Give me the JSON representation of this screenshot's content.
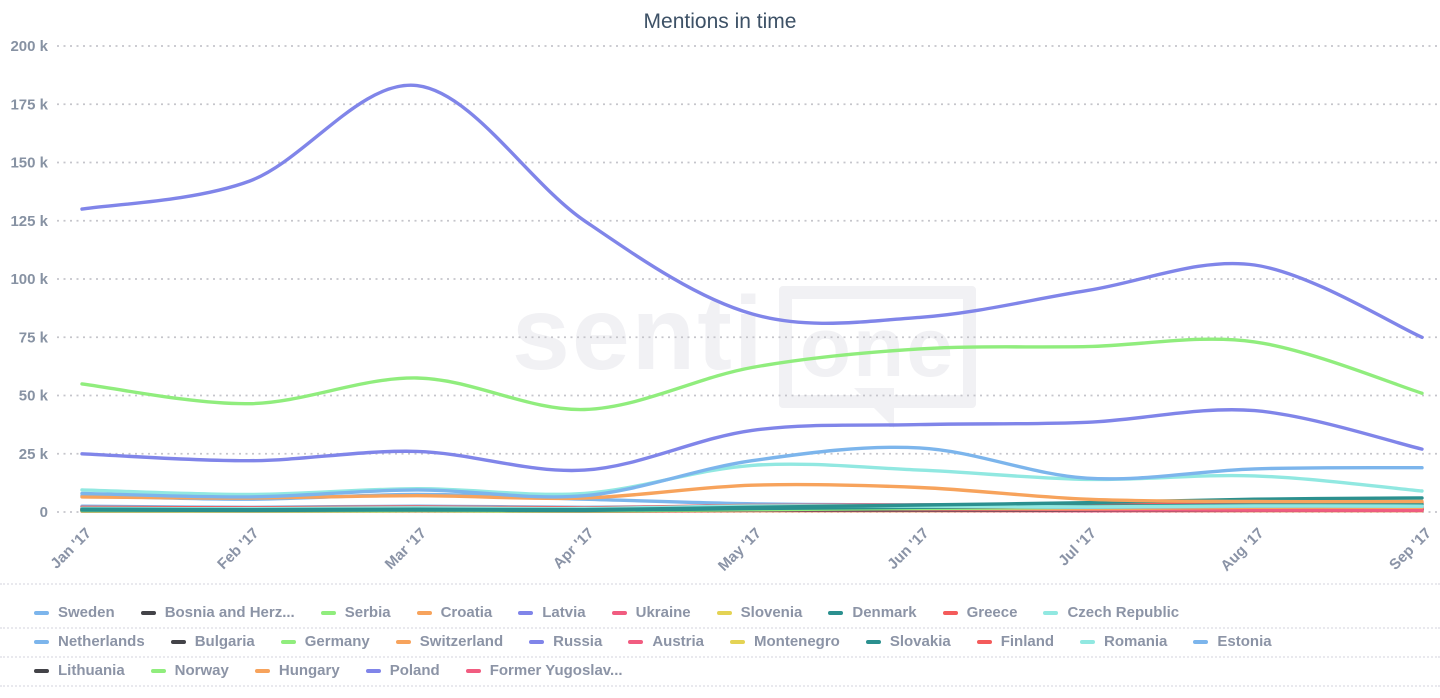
{
  "title": "Mentions in time",
  "watermark": {
    "text_left": "senti",
    "text_boxed": "one"
  },
  "colors": {
    "title_text": "#3d5166",
    "y_axis_text": "#8792a3",
    "x_axis_text": "#8a93a6",
    "legend_text": "#8c94a6",
    "gridline": "#c5c5cb",
    "background": "#ffffff",
    "watermark": "#f1f1f4"
  },
  "chart_data": {
    "type": "line",
    "title": "Mentions in time",
    "xlabel": "",
    "ylabel": "",
    "x": [
      "Jan '17",
      "Feb '17",
      "Mar '17",
      "Apr '17",
      "May '17",
      "Jun '17",
      "Jul '17",
      "Aug '17",
      "Sep '17"
    ],
    "ylim": [
      0,
      200000
    ],
    "y_tick_step": 25000,
    "y_tick_labels": [
      "0",
      "25 k",
      "50 k",
      "75 k",
      "100 k",
      "125 k",
      "150 k",
      "175 k",
      "200 k"
    ],
    "grid": "dotted horizontal",
    "legend_position": "bottom",
    "series": [
      {
        "name": "Sweden",
        "color": "#7cb5ec",
        "values": [
          8000,
          6500,
          9500,
          7000,
          22000,
          27500,
          14500,
          18500,
          19000
        ]
      },
      {
        "name": "Bosnia and Herz...",
        "color": "#434348",
        "values": [
          1300,
          1100,
          1300,
          1100,
          1200,
          1200,
          1200,
          1400,
          1400
        ]
      },
      {
        "name": "Serbia",
        "color": "#90ed7d",
        "values": [
          500,
          500,
          600,
          500,
          1000,
          1000,
          1000,
          1200,
          1200
        ]
      },
      {
        "name": "Croatia",
        "color": "#f7a35c",
        "values": [
          900,
          800,
          1000,
          800,
          1600,
          1500,
          1400,
          2000,
          2000
        ]
      },
      {
        "name": "Latvia",
        "color": "#8085e9",
        "values": [
          500,
          500,
          600,
          500,
          800,
          800,
          800,
          1000,
          1000
        ]
      },
      {
        "name": "Ukraine",
        "color": "#f15c80",
        "values": [
          1600,
          1400,
          1700,
          1400,
          2000,
          1900,
          1600,
          1600,
          1500
        ]
      },
      {
        "name": "Slovenia",
        "color": "#e4d354",
        "values": [
          400,
          400,
          500,
          400,
          500,
          500,
          500,
          600,
          600
        ]
      },
      {
        "name": "Denmark",
        "color": "#2b908f",
        "values": [
          1200,
          1000,
          1200,
          1000,
          2000,
          3000,
          4000,
          5500,
          6000
        ]
      },
      {
        "name": "Greece",
        "color": "#f45b5b",
        "values": [
          2000,
          1800,
          2200,
          1800,
          2800,
          3000,
          3200,
          3800,
          4000
        ]
      },
      {
        "name": "Czech Republic",
        "color": "#91e8e1",
        "values": [
          9500,
          7500,
          10000,
          8000,
          20000,
          18000,
          14000,
          15500,
          9000
        ]
      },
      {
        "name": "Netherlands",
        "color": "#7cb5ec",
        "values": [
          7000,
          5500,
          7500,
          5500,
          3500,
          3000,
          2500,
          3000,
          2500
        ]
      },
      {
        "name": "Bulgaria",
        "color": "#434348",
        "values": [
          900,
          800,
          1000,
          800,
          1000,
          1000,
          1000,
          1200,
          1200
        ]
      },
      {
        "name": "Germany",
        "color": "#90ed7d",
        "values": [
          55000,
          46500,
          57500,
          44000,
          62000,
          70000,
          71000,
          73000,
          51000
        ]
      },
      {
        "name": "Switzerland",
        "color": "#f7a35c",
        "values": [
          6500,
          6000,
          7000,
          6000,
          11500,
          10500,
          5500,
          4500,
          4500
        ]
      },
      {
        "name": "Russia",
        "color": "#8085e9",
        "values": [
          25000,
          22000,
          26000,
          18000,
          35000,
          37500,
          38500,
          43500,
          27000
        ]
      },
      {
        "name": "Austria",
        "color": "#f15c80",
        "values": [
          1000,
          900,
          1000,
          900,
          1300,
          1300,
          1100,
          1100,
          1000
        ]
      },
      {
        "name": "Montenegro",
        "color": "#e4d354",
        "values": [
          300,
          300,
          400,
          300,
          500,
          500,
          500,
          500,
          500
        ]
      },
      {
        "name": "Slovakia",
        "color": "#2b908f",
        "values": [
          800,
          700,
          900,
          700,
          1500,
          2000,
          2500,
          3000,
          3200
        ]
      },
      {
        "name": "Finland",
        "color": "#f45b5b",
        "values": [
          1200,
          1000,
          1300,
          1000,
          1600,
          1600,
          1800,
          2000,
          2000
        ]
      },
      {
        "name": "Romania",
        "color": "#91e8e1",
        "values": [
          1600,
          1400,
          1800,
          1500,
          2600,
          2500,
          2200,
          2600,
          2500
        ]
      },
      {
        "name": "Estonia",
        "color": "#7cb5ec",
        "values": [
          2500,
          2000,
          2500,
          2000,
          2500,
          2500,
          2000,
          2500,
          2500
        ]
      },
      {
        "name": "Lithuania",
        "color": "#434348",
        "values": [
          700,
          600,
          800,
          600,
          900,
          900,
          900,
          1100,
          1100
        ]
      },
      {
        "name": "Norway",
        "color": "#90ed7d",
        "values": [
          600,
          500,
          800,
          600,
          1000,
          1500,
          2000,
          2600,
          2600
        ]
      },
      {
        "name": "Hungary",
        "color": "#f7a35c",
        "values": [
          1100,
          1000,
          1300,
          1100,
          2000,
          2000,
          2400,
          3400,
          3500
        ]
      },
      {
        "name": "Poland",
        "color": "#8085e9",
        "values": [
          130000,
          142000,
          183000,
          125000,
          85000,
          83500,
          95000,
          106000,
          75000
        ]
      },
      {
        "name": "Former Yugoslav...",
        "color": "#f15c80",
        "values": [
          400,
          400,
          500,
          400,
          600,
          600,
          500,
          600,
          600
        ]
      }
    ],
    "draw_order": [
      "Latvia",
      "Slovenia",
      "Montenegro",
      "Former Yugoslav...",
      "Serbia",
      "Bulgaria",
      "Lithuania",
      "Bosnia and Herz...",
      "Austria",
      "Finland",
      "Ukraine",
      "Croatia",
      "Norway",
      "Estonia",
      "Netherlands",
      "Hungary",
      "Greece",
      "Slovakia",
      "Romania",
      "Denmark",
      "Switzerland",
      "Czech Republic",
      "Sweden",
      "Russia",
      "Germany",
      "Poland"
    ]
  },
  "legend": {
    "rows": [
      [
        "Sweden",
        "Bosnia and Herz...",
        "Serbia",
        "Croatia",
        "Latvia",
        "Ukraine",
        "Slovenia",
        "Denmark",
        "Greece",
        "Czech Republic"
      ],
      [
        "Netherlands",
        "Bulgaria",
        "Germany",
        "Switzerland",
        "Russia",
        "Austria",
        "Montenegro",
        "Slovakia",
        "Finland",
        "Romania",
        "Estonia"
      ],
      [
        "Lithuania",
        "Norway",
        "Hungary",
        "Poland",
        "Former Yugoslav..."
      ]
    ]
  }
}
